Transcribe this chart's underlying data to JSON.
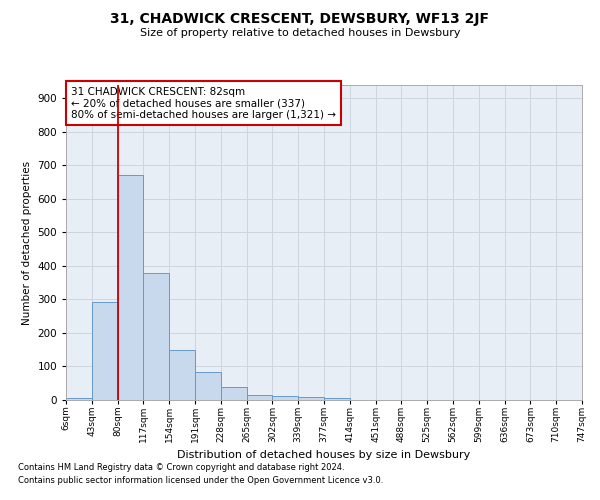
{
  "title": "31, CHADWICK CRESCENT, DEWSBURY, WF13 2JF",
  "subtitle": "Size of property relative to detached houses in Dewsbury",
  "xlabel": "Distribution of detached houses by size in Dewsbury",
  "ylabel": "Number of detached properties",
  "bar_values": [
    7,
    293,
    670,
    380,
    150,
    85,
    38,
    14,
    13,
    10,
    5,
    0,
    0,
    0,
    0,
    0,
    0,
    0
  ],
  "bar_color": "#c8d9ee",
  "bar_edge_color": "#6699cc",
  "bar_edge_width": 0.7,
  "tick_labels": [
    "6sqm",
    "43sqm",
    "80sqm",
    "117sqm",
    "154sqm",
    "191sqm",
    "228sqm",
    "265sqm",
    "302sqm",
    "339sqm",
    "377sqm",
    "414sqm",
    "451sqm",
    "488sqm",
    "525sqm",
    "562sqm",
    "599sqm",
    "636sqm",
    "673sqm",
    "710sqm",
    "747sqm"
  ],
  "n_bars": 18,
  "property_line_x": 2.0,
  "annotation_text": "31 CHADWICK CRESCENT: 82sqm\n← 20% of detached houses are smaller (337)\n80% of semi-detached houses are larger (1,321) →",
  "annotation_box_color": "#ffffff",
  "annotation_box_edge_color": "#cc0000",
  "footnote1": "Contains HM Land Registry data © Crown copyright and database right 2024.",
  "footnote2": "Contains public sector information licensed under the Open Government Licence v3.0.",
  "grid_color": "#ccd5e0",
  "background_color": "#e8eef5",
  "ylim": [
    0,
    940
  ],
  "yticks": [
    0,
    100,
    200,
    300,
    400,
    500,
    600,
    700,
    800,
    900
  ]
}
